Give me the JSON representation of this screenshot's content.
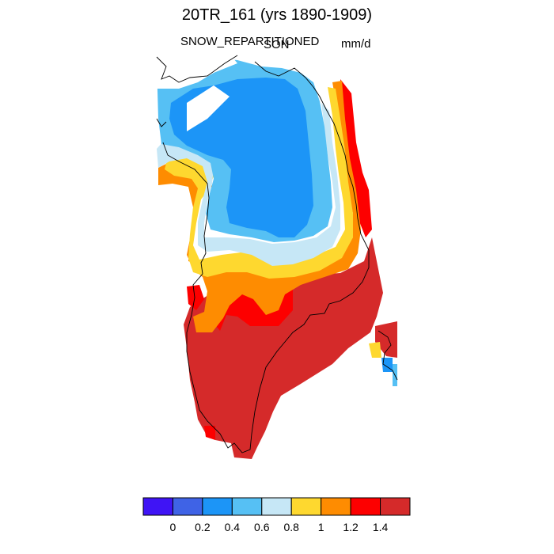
{
  "title": "20TR_161 (yrs 1890-1909)",
  "variable": "SNOW_REPARTITIONED",
  "season": "SON",
  "units": "mm/d",
  "colorbar": {
    "colors": [
      "#3f14f5",
      "#3f63e6",
      "#1c95f7",
      "#56c0f4",
      "#c6e7f6",
      "#fed82f",
      "#fe8c01",
      "#fd0000",
      "#d52a2a"
    ],
    "labels": [
      "0",
      "0.2",
      "0.4",
      "0.6",
      "0.8",
      "1",
      "1.2",
      "1.4"
    ]
  }
}
